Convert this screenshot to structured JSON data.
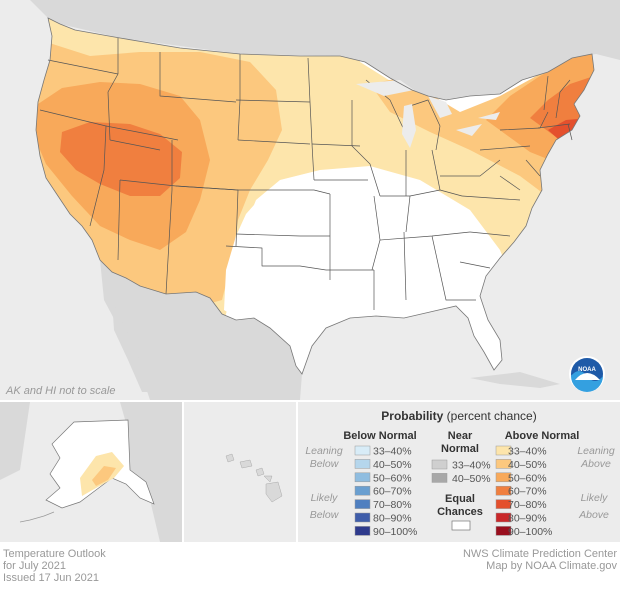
{
  "map": {
    "note": "AK and HI not to scale",
    "logo_text": "NOAA",
    "ocean_color": "#ececec",
    "land_color": "#d9d9d9"
  },
  "legend": {
    "title_bold": "Probability",
    "title_rest": " (percent chance)",
    "below": {
      "header": "Below Normal",
      "leaning_1": "Leaning",
      "leaning_2": "Below",
      "likely_1": "Likely",
      "likely_2": "Below",
      "items": [
        {
          "label": "33–40%",
          "color": "#d8ecf7"
        },
        {
          "label": "40–50%",
          "color": "#b5d6ec"
        },
        {
          "label": "50–60%",
          "color": "#8fbde0"
        },
        {
          "label": "60–70%",
          "color": "#6a9fd0"
        },
        {
          "label": "70–80%",
          "color": "#4f7fc0"
        },
        {
          "label": "80–90%",
          "color": "#3f5daa"
        },
        {
          "label": "90–100%",
          "color": "#2e3a8c"
        }
      ]
    },
    "near": {
      "header_1": "Near",
      "header_2": "Normal",
      "items": [
        {
          "label": "33–40%",
          "color": "#cfcfcf"
        },
        {
          "label": "40–50%",
          "color": "#a8a8a8"
        }
      ]
    },
    "equal": {
      "label_1": "Equal",
      "label_2": "Chances",
      "color": "#ffffff"
    },
    "above": {
      "header": "Above Normal",
      "leaning_1": "Leaning",
      "leaning_2": "Above",
      "likely_1": "Likely",
      "likely_2": "Above",
      "items": [
        {
          "label": "33–40%",
          "color": "#fde5ab"
        },
        {
          "label": "40–50%",
          "color": "#fcc87e"
        },
        {
          "label": "50–60%",
          "color": "#f8a95a"
        },
        {
          "label": "60–70%",
          "color": "#f07f3f"
        },
        {
          "label": "70–80%",
          "color": "#e4502d"
        },
        {
          "label": "80–90%",
          "color": "#c9282a"
        },
        {
          "label": "90–100%",
          "color": "#990f1e"
        }
      ]
    }
  },
  "footer": {
    "left_1": "Temperature Outlook",
    "left_2": "for July 2021",
    "left_3": "Issued 17 Jun 2021",
    "right_1": "NWS Climate Prediction Center",
    "right_2": "Map by NOAA Climate.gov"
  }
}
